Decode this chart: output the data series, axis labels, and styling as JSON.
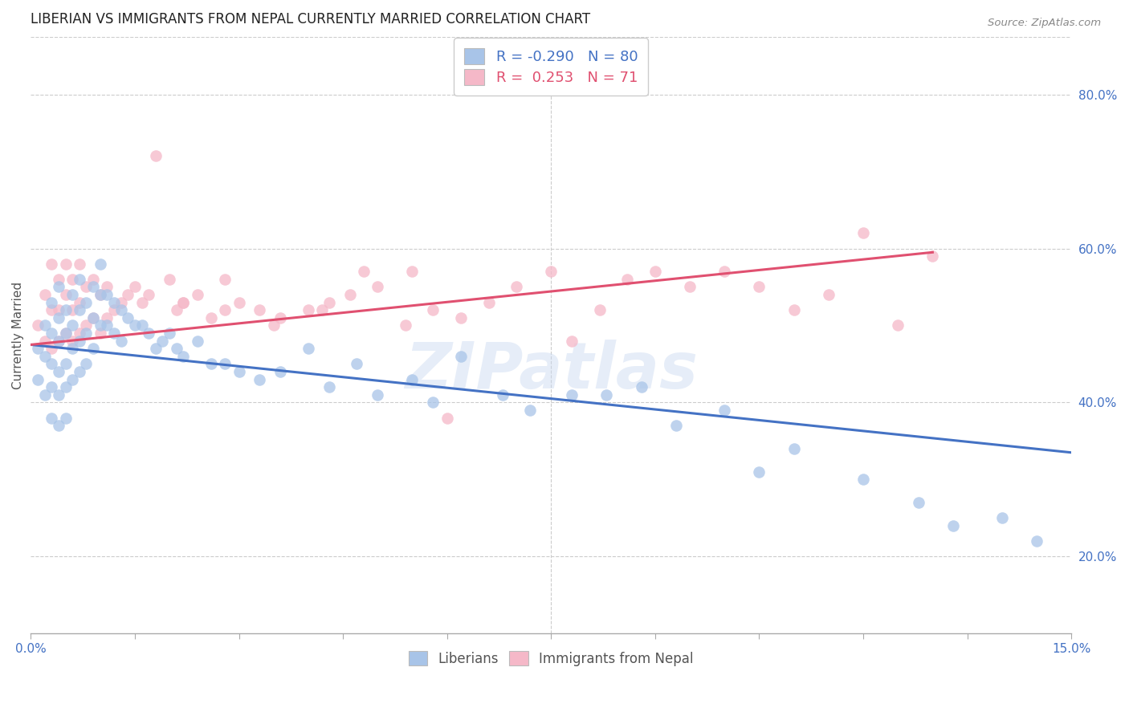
{
  "title": "LIBERIAN VS IMMIGRANTS FROM NEPAL CURRENTLY MARRIED CORRELATION CHART",
  "source": "Source: ZipAtlas.com",
  "ylabel": "Currently Married",
  "right_yticks": [
    "20.0%",
    "40.0%",
    "60.0%",
    "80.0%"
  ],
  "right_ytick_vals": [
    0.2,
    0.4,
    0.6,
    0.8
  ],
  "xlim": [
    0.0,
    0.15
  ],
  "ylim": [
    0.1,
    0.875
  ],
  "blue_color": "#a8c4e8",
  "pink_color": "#f5b8c8",
  "blue_line_color": "#4472c4",
  "pink_line_color": "#e05070",
  "R_blue": -0.29,
  "N_blue": 80,
  "R_pink": 0.253,
  "N_pink": 71,
  "legend_labels": [
    "Liberians",
    "Immigrants from Nepal"
  ],
  "watermark": "ZIPatlas",
  "blue_scatter_x": [
    0.001,
    0.001,
    0.002,
    0.002,
    0.002,
    0.003,
    0.003,
    0.003,
    0.003,
    0.003,
    0.004,
    0.004,
    0.004,
    0.004,
    0.004,
    0.004,
    0.005,
    0.005,
    0.005,
    0.005,
    0.005,
    0.006,
    0.006,
    0.006,
    0.006,
    0.007,
    0.007,
    0.007,
    0.007,
    0.008,
    0.008,
    0.008,
    0.009,
    0.009,
    0.009,
    0.01,
    0.01,
    0.01,
    0.011,
    0.011,
    0.012,
    0.012,
    0.013,
    0.013,
    0.014,
    0.015,
    0.016,
    0.017,
    0.018,
    0.019,
    0.02,
    0.021,
    0.022,
    0.024,
    0.026,
    0.028,
    0.03,
    0.033,
    0.036,
    0.04,
    0.043,
    0.047,
    0.05,
    0.055,
    0.058,
    0.062,
    0.068,
    0.072,
    0.078,
    0.083,
    0.088,
    0.093,
    0.1,
    0.105,
    0.11,
    0.12,
    0.128,
    0.133,
    0.14,
    0.145
  ],
  "blue_scatter_y": [
    0.47,
    0.43,
    0.5,
    0.46,
    0.41,
    0.53,
    0.49,
    0.45,
    0.42,
    0.38,
    0.55,
    0.51,
    0.48,
    0.44,
    0.41,
    0.37,
    0.52,
    0.49,
    0.45,
    0.42,
    0.38,
    0.54,
    0.5,
    0.47,
    0.43,
    0.56,
    0.52,
    0.48,
    0.44,
    0.53,
    0.49,
    0.45,
    0.55,
    0.51,
    0.47,
    0.58,
    0.54,
    0.5,
    0.54,
    0.5,
    0.53,
    0.49,
    0.52,
    0.48,
    0.51,
    0.5,
    0.5,
    0.49,
    0.47,
    0.48,
    0.49,
    0.47,
    0.46,
    0.48,
    0.45,
    0.45,
    0.44,
    0.43,
    0.44,
    0.47,
    0.42,
    0.45,
    0.41,
    0.43,
    0.4,
    0.46,
    0.41,
    0.39,
    0.41,
    0.41,
    0.42,
    0.37,
    0.39,
    0.31,
    0.34,
    0.3,
    0.27,
    0.24,
    0.25,
    0.22
  ],
  "pink_scatter_x": [
    0.001,
    0.002,
    0.002,
    0.003,
    0.003,
    0.003,
    0.004,
    0.004,
    0.004,
    0.005,
    0.005,
    0.005,
    0.006,
    0.006,
    0.006,
    0.007,
    0.007,
    0.007,
    0.008,
    0.008,
    0.009,
    0.009,
    0.01,
    0.01,
    0.011,
    0.011,
    0.012,
    0.013,
    0.014,
    0.015,
    0.016,
    0.017,
    0.018,
    0.02,
    0.021,
    0.022,
    0.024,
    0.026,
    0.028,
    0.03,
    0.033,
    0.036,
    0.04,
    0.043,
    0.046,
    0.05,
    0.054,
    0.058,
    0.062,
    0.066,
    0.07,
    0.075,
    0.078,
    0.082,
    0.086,
    0.09,
    0.095,
    0.1,
    0.105,
    0.11,
    0.115,
    0.12,
    0.125,
    0.13,
    0.022,
    0.028,
    0.035,
    0.042,
    0.048,
    0.055,
    0.06
  ],
  "pink_scatter_y": [
    0.5,
    0.54,
    0.48,
    0.58,
    0.52,
    0.47,
    0.56,
    0.52,
    0.48,
    0.58,
    0.54,
    0.49,
    0.56,
    0.52,
    0.48,
    0.58,
    0.53,
    0.49,
    0.55,
    0.5,
    0.56,
    0.51,
    0.54,
    0.49,
    0.55,
    0.51,
    0.52,
    0.53,
    0.54,
    0.55,
    0.53,
    0.54,
    0.72,
    0.56,
    0.52,
    0.53,
    0.54,
    0.51,
    0.52,
    0.53,
    0.52,
    0.51,
    0.52,
    0.53,
    0.54,
    0.55,
    0.5,
    0.52,
    0.51,
    0.53,
    0.55,
    0.57,
    0.48,
    0.52,
    0.56,
    0.57,
    0.55,
    0.57,
    0.55,
    0.52,
    0.54,
    0.62,
    0.5,
    0.59,
    0.53,
    0.56,
    0.5,
    0.52,
    0.57,
    0.57,
    0.38
  ],
  "blue_line_x": [
    0.0,
    0.15
  ],
  "blue_line_y": [
    0.475,
    0.335
  ],
  "pink_line_x": [
    0.0,
    0.13
  ],
  "pink_line_y": [
    0.475,
    0.595
  ]
}
